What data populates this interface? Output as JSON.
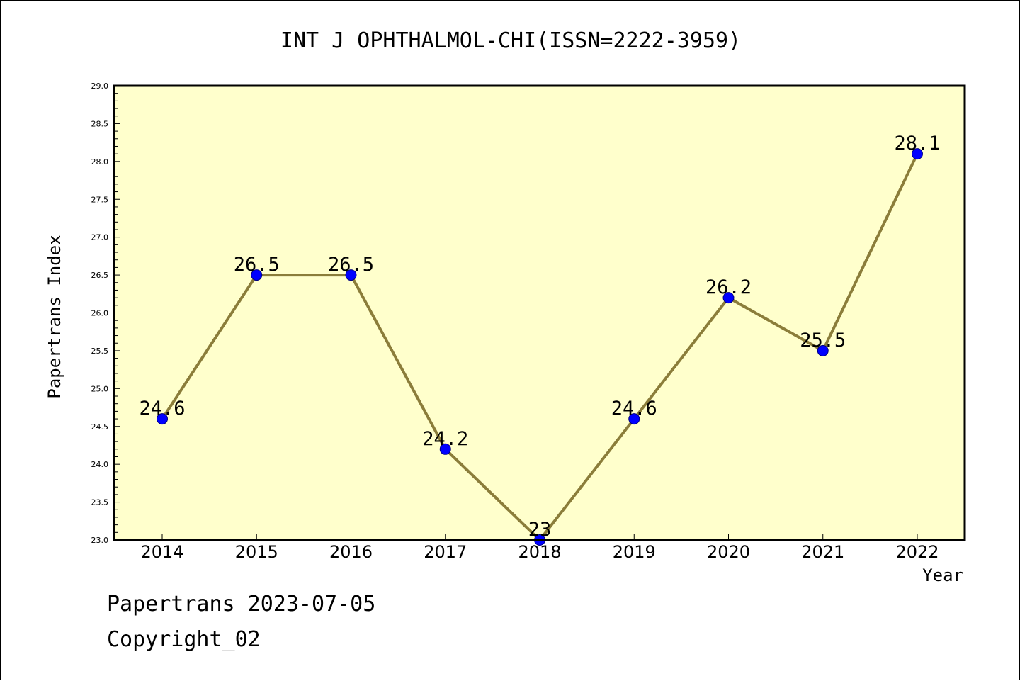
{
  "chart_data": {
    "type": "line",
    "title": "INT J OPHTHALMOL-CHI(ISSN=2222-3959)",
    "xlabel": "Year",
    "ylabel": "Papertrans Index",
    "categories": [
      "2014",
      "2015",
      "2016",
      "2017",
      "2018",
      "2019",
      "2020",
      "2021",
      "2022"
    ],
    "series": [
      {
        "values": [
          24.6,
          26.5,
          26.5,
          24.2,
          23.0,
          24.6,
          26.2,
          25.5,
          28.1
        ],
        "labels": [
          "24.6",
          "26.5",
          "26.5",
          "24.2",
          "23",
          "24.6",
          "26.2",
          "25.5",
          "28.1"
        ]
      }
    ],
    "ylim": [
      23.0,
      29.0
    ],
    "yticks": [
      "23.0",
      "23.5",
      "24.0",
      "24.5",
      "25.0",
      "25.5",
      "26.0",
      "26.5",
      "27.0",
      "27.5",
      "28.0",
      "28.5",
      "29.0"
    ],
    "grid": false,
    "legend": "none",
    "colors": {
      "plot_background": "#ffffcc",
      "line": "#8b7d3a",
      "marker": "#0000ff",
      "marker_edge": "#000080"
    }
  },
  "footer": {
    "date_text": "Papertrans 2023-07-05",
    "copyright_text": "Copyright_02"
  }
}
